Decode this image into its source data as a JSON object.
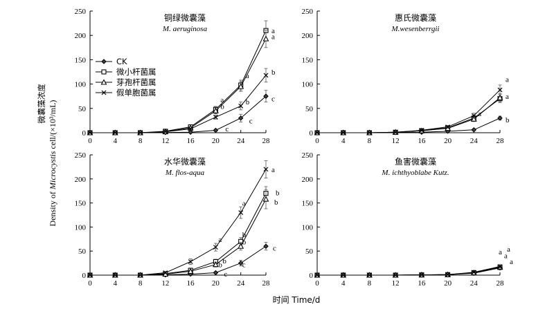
{
  "figure": {
    "ylabel_cn": "微囊藻浓度",
    "ylabel_en_pre": "Density of ",
    "ylabel_en_italic": "Microcystis",
    "ylabel_en_post": " cell/(×10³/mL)",
    "xlabel": "时间 Time/d"
  },
  "legend": [
    {
      "name": "CK",
      "marker": "diamond"
    },
    {
      "name": "微小杆菌属",
      "marker": "square"
    },
    {
      "name": "芽孢杆菌属",
      "marker": "triangle"
    },
    {
      "name": "假单胞菌属",
      "marker": "cross"
    }
  ],
  "chart_data": [
    {
      "type": "line",
      "title": "铜绿微囊藻",
      "subtitle": "M. aeruginosa",
      "x": [
        0,
        4,
        8,
        12,
        16,
        20,
        24,
        28
      ],
      "xlim": [
        0,
        28
      ],
      "ylim": [
        0,
        250
      ],
      "yticks": [
        0,
        50,
        100,
        150,
        200,
        250
      ],
      "series": [
        {
          "name": "CK",
          "values": [
            0,
            0,
            0,
            0.5,
            1,
            5,
            30,
            75
          ],
          "errors": [
            0,
            0,
            0,
            0,
            1,
            2,
            8,
            12
          ]
        },
        {
          "name": "微小杆菌属",
          "values": [
            0,
            0,
            0,
            3,
            12,
            48,
            98,
            210
          ],
          "errors": [
            0,
            0,
            0,
            1,
            2,
            6,
            10,
            20
          ]
        },
        {
          "name": "芽孢杆菌属",
          "values": [
            0,
            0,
            0,
            2,
            10,
            45,
            95,
            193
          ],
          "errors": [
            0,
            0,
            0,
            1,
            2,
            6,
            10,
            18
          ]
        },
        {
          "name": "假单胞菌属",
          "values": [
            0,
            0,
            0,
            2,
            8,
            32,
            55,
            118
          ],
          "errors": [
            0,
            0,
            0,
            1,
            2,
            4,
            8,
            14
          ]
        }
      ],
      "annotations": [
        {
          "x": 20,
          "y": 68,
          "text": "a"
        },
        {
          "x": 20,
          "y": 55,
          "text": "b"
        },
        {
          "x": 20,
          "y": 6,
          "text": "c"
        },
        {
          "x": 24,
          "y": 118,
          "text": "a"
        },
        {
          "x": 24,
          "y": 64,
          "text": "b"
        },
        {
          "x": 24,
          "y": 25,
          "text": "c"
        },
        {
          "x": 28,
          "y": 210,
          "text": "a"
        },
        {
          "x": 28,
          "y": 198,
          "text": "a"
        },
        {
          "x": 28,
          "y": 125,
          "text": "b"
        },
        {
          "x": 28,
          "y": 70,
          "text": "c"
        }
      ]
    },
    {
      "type": "line",
      "title": "惠氏微囊藻",
      "subtitle": "M.wesenberrgii",
      "x": [
        0,
        4,
        8,
        12,
        16,
        20,
        24,
        28
      ],
      "xlim": [
        0,
        28
      ],
      "ylim": [
        0,
        250
      ],
      "yticks": [
        0,
        50,
        100,
        150,
        200,
        250
      ],
      "series": [
        {
          "name": "CK",
          "values": [
            0,
            0,
            0,
            0.5,
            1,
            3,
            6,
            30
          ],
          "errors": [
            0,
            0,
            0,
            0,
            1,
            1,
            2,
            4
          ]
        },
        {
          "name": "微小杆菌属",
          "values": [
            0,
            0,
            0,
            1,
            4,
            10,
            30,
            70
          ],
          "errors": [
            0,
            0,
            0,
            1,
            2,
            3,
            5,
            8
          ]
        },
        {
          "name": "芽孢杆菌属",
          "values": [
            0,
            0,
            0,
            1,
            4,
            9,
            28,
            72
          ],
          "errors": [
            0,
            0,
            0,
            1,
            2,
            3,
            5,
            8
          ]
        },
        {
          "name": "假单胞菌属",
          "values": [
            0,
            0,
            0,
            1,
            5,
            12,
            35,
            88
          ],
          "errors": [
            0,
            0,
            0,
            1,
            2,
            3,
            5,
            10
          ]
        }
      ],
      "annotations": [
        {
          "x": 24,
          "y": 40,
          "text": "a"
        },
        {
          "x": 28,
          "y": 110,
          "text": "a"
        },
        {
          "x": 28,
          "y": 75,
          "text": "a"
        },
        {
          "x": 28,
          "y": 27,
          "text": "b"
        }
      ]
    },
    {
      "type": "line",
      "title": "水华微囊藻",
      "subtitle": "M. flos-aqua",
      "x": [
        0,
        4,
        8,
        12,
        16,
        20,
        24,
        28
      ],
      "xlim": [
        0,
        28
      ],
      "ylim": [
        0,
        250
      ],
      "yticks": [
        0,
        50,
        100,
        150,
        200,
        250
      ],
      "series": [
        {
          "name": "CK",
          "values": [
            0,
            0,
            0,
            0.5,
            2,
            5,
            25,
            60
          ],
          "errors": [
            0,
            0,
            0,
            0,
            1,
            2,
            6,
            8
          ]
        },
        {
          "name": "微小杆菌属",
          "values": [
            0,
            0,
            0,
            3,
            10,
            28,
            70,
            170
          ],
          "errors": [
            0,
            0,
            0,
            1,
            2,
            5,
            8,
            14
          ]
        },
        {
          "name": "芽孢杆菌属",
          "values": [
            0,
            0,
            0,
            2,
            8,
            22,
            60,
            158
          ],
          "errors": [
            0,
            0,
            0,
            1,
            2,
            5,
            8,
            20
          ]
        },
        {
          "name": "假单胞菌属",
          "values": [
            0,
            0,
            0,
            5,
            28,
            58,
            130,
            220
          ],
          "errors": [
            0,
            0,
            0,
            2,
            6,
            8,
            12,
            18
          ]
        }
      ],
      "annotations": [
        {
          "x": 20,
          "y": 75,
          "text": "a"
        },
        {
          "x": 20,
          "y": 30,
          "text": "b"
        },
        {
          "x": 20,
          "y": 22,
          "text": "b"
        },
        {
          "x": 20,
          "y": 3,
          "text": "c"
        },
        {
          "x": 24,
          "y": 150,
          "text": "a"
        },
        {
          "x": 24,
          "y": 85,
          "text": "b"
        },
        {
          "x": 24,
          "y": 70,
          "text": "b"
        },
        {
          "x": 24,
          "y": 22,
          "text": "c"
        },
        {
          "x": 28,
          "y": 220,
          "text": "a"
        },
        {
          "x": 28,
          "y": 172,
          "text": "b"
        },
        {
          "x": 28,
          "y": 152,
          "text": "b"
        },
        {
          "x": 28,
          "y": 57,
          "text": "c"
        }
      ]
    },
    {
      "type": "line",
      "title": "鱼害微囊藻",
      "subtitle": "M. ichthyoblabe Kutz.",
      "x": [
        0,
        4,
        8,
        12,
        16,
        20,
        24,
        28
      ],
      "xlim": [
        0,
        28
      ],
      "ylim": [
        0,
        250
      ],
      "yticks": [
        0,
        50,
        100,
        150,
        200,
        250
      ],
      "series": [
        {
          "name": "CK",
          "values": [
            0,
            0,
            0,
            0,
            0.5,
            1,
            4,
            15
          ],
          "errors": [
            0,
            0,
            0,
            0,
            0,
            1,
            1,
            3
          ]
        },
        {
          "name": "微小杆菌属",
          "values": [
            0,
            0,
            0,
            0,
            0.5,
            1,
            5,
            16
          ],
          "errors": [
            0,
            0,
            0,
            0,
            0,
            1,
            1,
            3
          ]
        },
        {
          "name": "芽孢杆菌属",
          "values": [
            0,
            0,
            0,
            0,
            0.5,
            1,
            5,
            17
          ],
          "errors": [
            0,
            0,
            0,
            0,
            0,
            1,
            1,
            3
          ]
        },
        {
          "name": "假单胞菌属",
          "values": [
            0,
            0,
            0,
            0,
            0.5,
            1,
            6,
            18
          ],
          "errors": [
            0,
            0,
            0,
            0,
            0,
            1,
            1,
            3
          ]
        }
      ],
      "annotations": [
        {
          "x": 28,
          "y": 43,
          "text": "a"
        },
        {
          "x": 28,
          "y": 38,
          "text": "a"
        },
        {
          "x": 28,
          "y": 46,
          "text": "a"
        },
        {
          "x": 28,
          "y": 26,
          "text": "a"
        }
      ]
    }
  ]
}
